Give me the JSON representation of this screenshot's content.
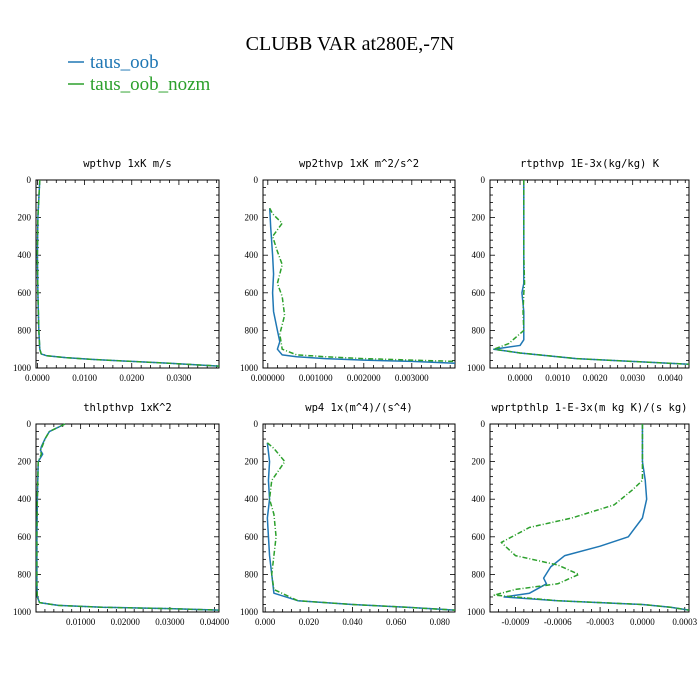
{
  "figure": {
    "title": "CLUBB VAR at280E,-7N",
    "legend": [
      {
        "label": "taus_oob",
        "color": "#1f77b4",
        "dash": "solid"
      },
      {
        "label": "taus_oob_nozm",
        "color": "#2ca02c",
        "dash": "dashed"
      }
    ]
  },
  "chart_data": [
    {
      "type": "line",
      "title": "wpthvp  1xK m/s",
      "xlim": [
        -0.0003,
        0.0385
      ],
      "ylim": [
        0,
        1000
      ],
      "y_inverted": true,
      "xticks": [
        0,
        0.01,
        0.02,
        0.03
      ],
      "xtick_labels": [
        "0.0000",
        "0.0100",
        "0.0200",
        "0.0300"
      ],
      "yticks": [
        0,
        200,
        400,
        600,
        800,
        1000
      ],
      "series": [
        {
          "name": "taus_oob",
          "x": [
            0.0005,
            0.0003,
            0.0001,
            0,
            0.0001,
            0.0003,
            0.0005,
            0.0008,
            0.002,
            0.006,
            0.012,
            0.02,
            0.028,
            0.0385
          ],
          "y": [
            0,
            100,
            200,
            400,
            600,
            800,
            900,
            925,
            935,
            945,
            955,
            965,
            975,
            990
          ]
        },
        {
          "name": "taus_oob_nozm",
          "x": [
            0.0005,
            0.0003,
            0.0001,
            0,
            0.0001,
            0.0003,
            0.0005,
            0.0008,
            0.002,
            0.006,
            0.012,
            0.02,
            0.028,
            0.0385
          ],
          "y": [
            0,
            100,
            200,
            400,
            600,
            800,
            900,
            925,
            935,
            945,
            955,
            965,
            975,
            990
          ]
        }
      ]
    },
    {
      "type": "line",
      "title": "wp2thvp  1xK m^2/s^2",
      "xlim": [
        -0.0001,
        0.0039
      ],
      "ylim": [
        0,
        1000
      ],
      "y_inverted": true,
      "xticks": [
        0,
        0.001,
        0.002,
        0.003
      ],
      "xtick_labels": [
        "0.000000",
        "0.001000",
        "0.002000",
        "0.003000"
      ],
      "yticks": [
        0,
        200,
        400,
        600,
        800,
        1000
      ],
      "series": [
        {
          "name": "taus_oob",
          "x": [
            4e-05,
            6e-05,
            0.0001,
            0.00012,
            0.0001,
            0.00012,
            0.0002,
            0.00025,
            0.0002,
            0.0003,
            0.0006,
            0.0012,
            0.002,
            0.003,
            0.0039
          ],
          "y": [
            150,
            250,
            400,
            500,
            600,
            700,
            800,
            860,
            900,
            930,
            940,
            950,
            958,
            965,
            975
          ]
        },
        {
          "name": "taus_oob_nozm",
          "x": [
            4e-05,
            0.0001,
            0.0003,
            0.0001,
            0.0002,
            0.0003,
            0.0002,
            0.0003,
            0.00035,
            0.00025,
            0.0003,
            0.0006,
            0.0012,
            0.002,
            0.003,
            0.0039
          ],
          "y": [
            150,
            180,
            230,
            300,
            380,
            450,
            550,
            620,
            720,
            820,
            900,
            930,
            940,
            950,
            958,
            965
          ]
        }
      ]
    },
    {
      "type": "line",
      "title": "rtpthvp  1E-3x(kg/kg) K",
      "xlim": [
        -0.0008,
        0.0045
      ],
      "ylim": [
        0,
        1000
      ],
      "y_inverted": true,
      "xticks": [
        0,
        0.001,
        0.002,
        0.003,
        0.004
      ],
      "xtick_labels": [
        "0.0000",
        "0.0010",
        "0.0020",
        "0.0030",
        "0.0040"
      ],
      "yticks": [
        0,
        200,
        400,
        600,
        800,
        1000
      ],
      "series": [
        {
          "name": "taus_oob",
          "x": [
            0.0001,
            0.0001,
            0.0001,
            0.0001,
            5e-05,
            0.0001,
            0.0001,
            0.0,
            -0.0007,
            0.0,
            0.0015,
            0.0035,
            0.0045
          ],
          "y": [
            0,
            200,
            400,
            550,
            600,
            700,
            850,
            880,
            900,
            920,
            950,
            970,
            980
          ]
        },
        {
          "name": "taus_oob_nozm",
          "x": [
            0.0001,
            0.0001,
            0.0001,
            0.00012,
            0.0001,
            8e-05,
            0.0001,
            -0.0003,
            -0.0007,
            0.0,
            0.0015,
            0.0035,
            0.0045
          ],
          "y": [
            0,
            200,
            400,
            550,
            600,
            700,
            800,
            870,
            900,
            920,
            950,
            970,
            980
          ]
        }
      ]
    },
    {
      "type": "line",
      "title": "thlpthvp  1xK^2",
      "xlim": [
        0,
        0.041
      ],
      "ylim": [
        0,
        1000
      ],
      "y_inverted": true,
      "xticks": [
        0.01,
        0.02,
        0.03,
        0.04
      ],
      "xtick_labels": [
        "0.01000",
        "0.02000",
        "0.03000",
        "0.04000"
      ],
      "yticks": [
        0,
        200,
        400,
        600,
        800,
        1000
      ],
      "series": [
        {
          "name": "taus_oob",
          "x": [
            0.0065,
            0.003,
            0.002,
            0.0012,
            0.001,
            0.0015,
            0.0005,
            0.0003,
            0.0002,
            0.0002,
            0.0003,
            0.0008,
            0.005,
            0.015,
            0.03,
            0.041
          ],
          "y": [
            0,
            40,
            80,
            120,
            140,
            160,
            200,
            400,
            600,
            850,
            920,
            950,
            965,
            975,
            982,
            990
          ]
        },
        {
          "name": "taus_oob_nozm",
          "x": [
            0.0065,
            0.003,
            0.002,
            0.0014,
            0.001,
            0.0012,
            0.0005,
            0.0003,
            0.0002,
            0.0002,
            0.0003,
            0.0008,
            0.005,
            0.015,
            0.03,
            0.041
          ],
          "y": [
            0,
            40,
            80,
            120,
            140,
            160,
            200,
            400,
            600,
            850,
            920,
            950,
            965,
            975,
            982,
            990
          ]
        }
      ]
    },
    {
      "type": "line",
      "title": "wp4  1x(m^4)/(s^4)",
      "xlim": [
        -0.001,
        0.087
      ],
      "ylim": [
        0,
        1000
      ],
      "y_inverted": true,
      "xticks": [
        0,
        0.02,
        0.04,
        0.06,
        0.08
      ],
      "xtick_labels": [
        "0.000",
        "0.020",
        "0.040",
        "0.060",
        "0.080"
      ],
      "yticks": [
        0,
        200,
        400,
        600,
        800,
        1000
      ],
      "series": [
        {
          "name": "taus_oob",
          "x": [
            0.001,
            0.002,
            0.0015,
            0.002,
            0.001,
            0.0015,
            0.002,
            0.003,
            0.004,
            0.015,
            0.04,
            0.065,
            0.087
          ],
          "y": [
            100,
            200,
            300,
            400,
            500,
            600,
            700,
            800,
            900,
            940,
            960,
            975,
            990
          ]
        },
        {
          "name": "taus_oob_nozm",
          "x": [
            0.001,
            0.004,
            0.009,
            0.003,
            0.002,
            0.004,
            0.005,
            0.004,
            0.003,
            0.004,
            0.015,
            0.04,
            0.065,
            0.087
          ],
          "y": [
            100,
            130,
            200,
            300,
            400,
            480,
            600,
            700,
            800,
            880,
            940,
            960,
            975,
            990
          ]
        }
      ]
    },
    {
      "type": "line",
      "title": "wprtpthlp  1-E-3x(m kg K)/(s kg)",
      "xlim": [
        -0.00108,
        0.00033
      ],
      "ylim": [
        0,
        1000
      ],
      "y_inverted": true,
      "xticks": [
        -0.0009,
        -0.0006,
        -0.0003,
        0,
        0.0003
      ],
      "xtick_labels": [
        "-0.0009",
        "-0.0006",
        "-0.0003",
        "0.0000",
        "0.0003"
      ],
      "yticks": [
        0,
        200,
        400,
        600,
        800,
        1000
      ],
      "series": [
        {
          "name": "taus_oob",
          "x": [
            0,
            0,
            2e-05,
            3e-05,
            0,
            -0.0001,
            -0.0003,
            -0.00055,
            -0.00065,
            -0.0007,
            -0.00068,
            -0.0008,
            -0.00098,
            -0.0006,
            0,
            0.0002,
            0.00033
          ],
          "y": [
            0,
            200,
            300,
            400,
            500,
            600,
            650,
            700,
            760,
            820,
            850,
            900,
            920,
            940,
            960,
            975,
            990
          ]
        },
        {
          "name": "taus_oob_nozm",
          "x": [
            0,
            0,
            0,
            -7e-05,
            -0.0002,
            -0.0005,
            -0.0008,
            -0.001,
            -0.0009,
            -0.0006,
            -0.00045,
            -0.0006,
            -0.0009,
            -0.00105,
            -0.0006,
            0,
            0.0002,
            0.00033
          ],
          "y": [
            0,
            200,
            300,
            350,
            430,
            500,
            550,
            630,
            700,
            750,
            800,
            850,
            880,
            910,
            940,
            960,
            975,
            990
          ]
        }
      ]
    }
  ]
}
